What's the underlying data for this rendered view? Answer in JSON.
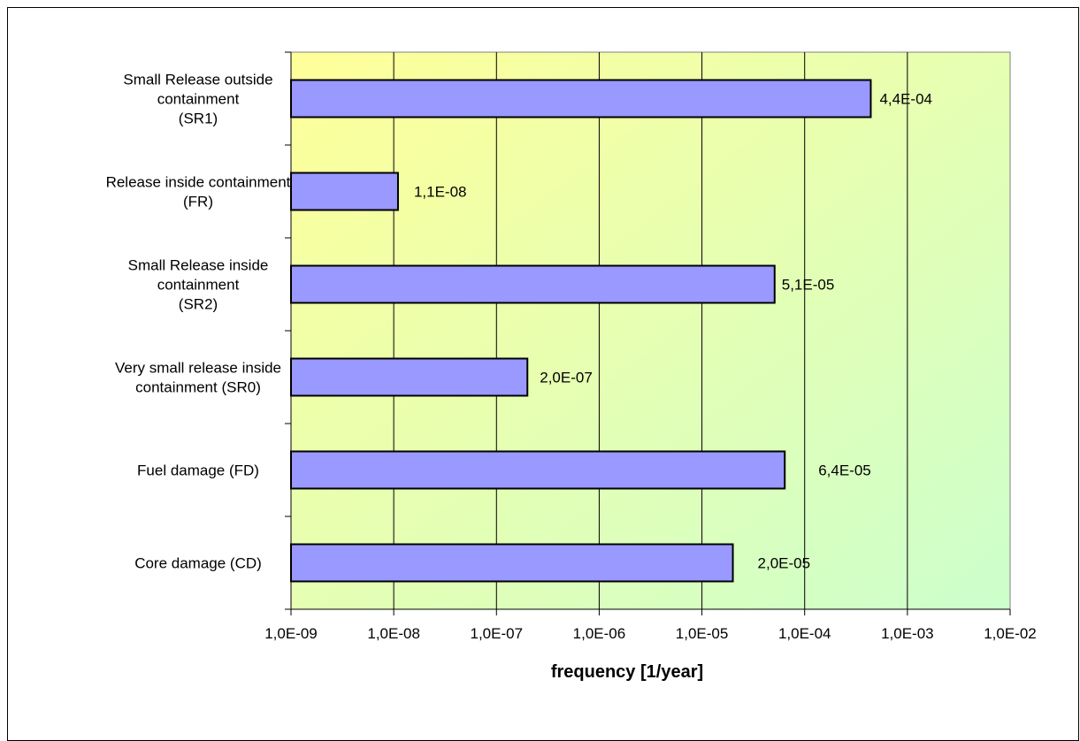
{
  "chart_data": {
    "type": "bar",
    "orientation": "horizontal",
    "x_scale": "log",
    "xlim": [
      1e-09,
      0.01
    ],
    "xlabel": "frequency [1/year]",
    "ylabel": "",
    "title": "",
    "grid": "vertical major gridlines",
    "legend": "none",
    "x_tick_labels": [
      "1,0E-09",
      "1,0E-08",
      "1,0E-07",
      "1,0E-06",
      "1,0E-05",
      "1,0E-04",
      "1,0E-03",
      "1,0E-02"
    ],
    "categories": [
      [
        "Small Release outside",
        "containment",
        "(SR1)"
      ],
      [
        "Release inside containment",
        "(FR)"
      ],
      [
        "Small Release inside",
        "containment",
        "(SR2)"
      ],
      [
        "Very small release inside",
        "containment (SR0)"
      ],
      [
        "Fuel damage (FD)"
      ],
      [
        "Core damage (CD)"
      ]
    ],
    "values": [
      0.00044,
      1.1e-08,
      5.1e-05,
      2e-07,
      6.4e-05,
      2e-05
    ],
    "value_labels": [
      "4,4E-04",
      "1,1E-08",
      "5,1E-05",
      "2,0E-07",
      "6,4E-05",
      "2,0E-05"
    ],
    "colors": {
      "bar_fill": "#9999ff",
      "bar_stroke": "#000000",
      "plot_gradient_start": "#ffff99",
      "plot_gradient_end": "#ccffcc",
      "gridline": "#000000"
    }
  }
}
